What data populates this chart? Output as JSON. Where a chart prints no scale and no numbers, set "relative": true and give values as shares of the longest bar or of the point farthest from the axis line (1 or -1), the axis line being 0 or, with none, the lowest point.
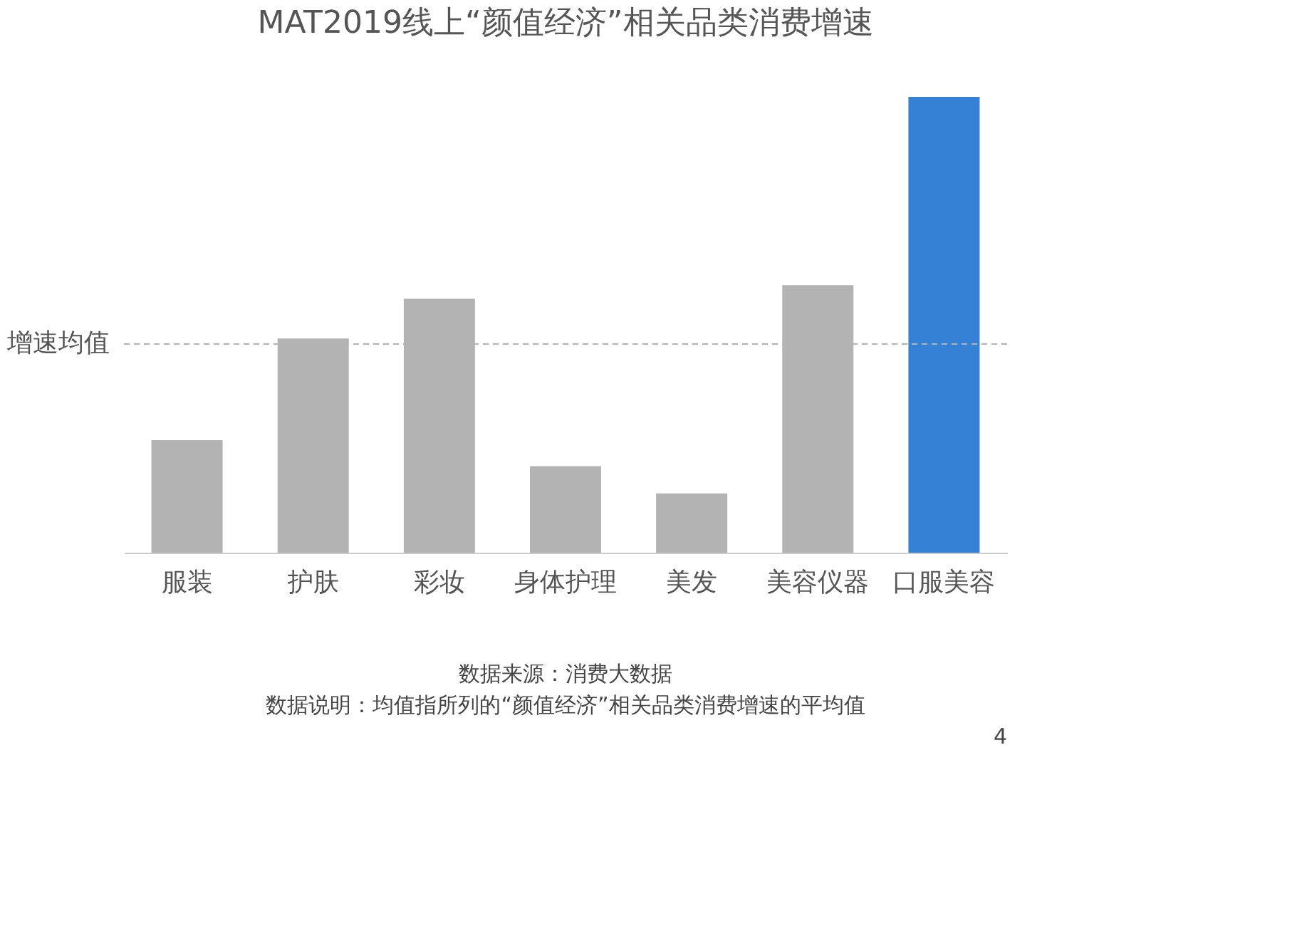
{
  "chart_data": {
    "type": "bar",
    "title": "MAT2019线上“颜值经济”相关品类消费增速",
    "categories": [
      "服装",
      "护肤",
      "彩妆",
      "身体护理",
      "美发",
      "美容仪器",
      "口服美容"
    ],
    "values": [
      0.247,
      0.47,
      0.557,
      0.19,
      0.13,
      0.587,
      1
    ],
    "colors": [
      "#b3b3b3",
      "#b3b3b3",
      "#b3b3b3",
      "#b3b3b3",
      "#b3b3b3",
      "#b3b3b3",
      "#3481d6"
    ],
    "relative": true,
    "ref_lines": [
      {
        "axis": "y",
        "value": 0.458,
        "label": "增速均值",
        "color": "#b3b3b3",
        "line_style": "dashed"
      }
    ],
    "annotations": [
      "数据来源：消费大数据",
      "数据说明：均值指所列的“颜值经济”相关品类消费增速的平均值",
      "4"
    ],
    "grid": false
  }
}
